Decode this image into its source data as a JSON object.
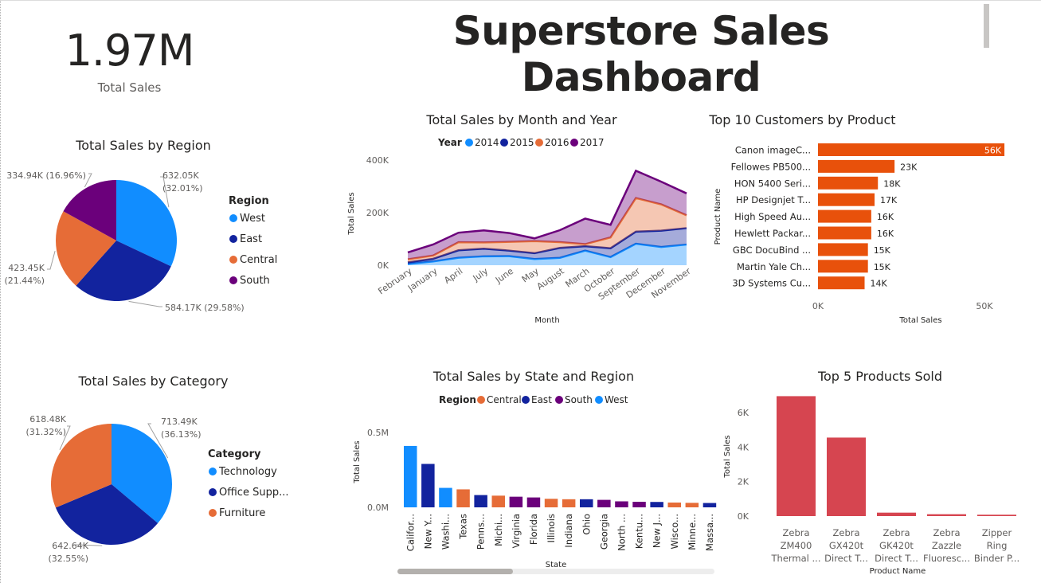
{
  "dashboard": {
    "title": "Superstore Sales Dashboard",
    "kpi": {
      "value": "1.97M",
      "label": "Total Sales"
    }
  },
  "colors": {
    "blue": "#118DFF",
    "dark_blue": "#12239E",
    "orange": "#E66C37",
    "purple": "#6B007B",
    "bar_orange": "#E8510B",
    "bar_red": "#D64550"
  },
  "chart_data": [
    {
      "id": "region_pie",
      "type": "pie",
      "title": "Total Sales by Region",
      "legend_title": "Region",
      "legend_position": "right",
      "slices": [
        {
          "name": "West",
          "value": 632.05,
          "label": "632.05K",
          "pct": "(32.01%)",
          "color": "#118DFF"
        },
        {
          "name": "East",
          "value": 584.17,
          "label": "584.17K (29.58%)",
          "pct": "",
          "color": "#12239E"
        },
        {
          "name": "Central",
          "value": 423.45,
          "label": "423.45K",
          "pct": "(21.44%)",
          "color": "#E66C37"
        },
        {
          "name": "South",
          "value": 334.94,
          "label": "334.94K (16.96%)",
          "pct": "",
          "color": "#6B007B"
        }
      ]
    },
    {
      "id": "category_pie",
      "type": "pie",
      "title": "Total Sales by Category",
      "legend_title": "Category",
      "legend_position": "right",
      "slices": [
        {
          "name": "Technology",
          "value": 713.49,
          "label": "713.49K",
          "pct": "(36.13%)",
          "color": "#118DFF"
        },
        {
          "name": "Office Supp...",
          "value": 642.64,
          "label": "642.64K",
          "pct": "(32.55%)",
          "color": "#12239E"
        },
        {
          "name": "Furniture",
          "value": 618.48,
          "label": "618.48K",
          "pct": "(31.32%)",
          "color": "#E66C37"
        }
      ]
    },
    {
      "id": "month_area",
      "type": "area",
      "title": "Total Sales by Month and Year",
      "legend_title": "Year",
      "legend_position": "top",
      "xlabel": "Month",
      "ylabel": "Total Sales",
      "ylim": [
        0,
        400000
      ],
      "yticks": [
        0,
        200000,
        400000
      ],
      "ytick_labels": [
        "0K",
        "200K",
        "400K"
      ],
      "categories": [
        "February",
        "January",
        "April",
        "July",
        "June",
        "May",
        "August",
        "March",
        "October",
        "September",
        "December",
        "November"
      ],
      "series": [
        {
          "name": "2014",
          "color": "#118DFF",
          "values": [
            4520,
            14240,
            28300,
            33900,
            34600,
            23600,
            28000,
            55700,
            31000,
            81800,
            69500,
            78600
          ]
        },
        {
          "name": "2015",
          "color": "#12239E",
          "values": [
            6000,
            10200,
            28400,
            29100,
            20900,
            22100,
            37900,
            16800,
            33500,
            46000,
            62000,
            62500
          ]
        },
        {
          "name": "2016",
          "color": "#E66C37",
          "values": [
            12000,
            12400,
            30800,
            23700,
            33400,
            46100,
            21800,
            7700,
            41200,
            127800,
            100000,
            48800
          ]
        },
        {
          "name": "2017",
          "color": "#6B007B",
          "values": [
            26000,
            42000,
            36200,
            46000,
            33600,
            10400,
            45600,
            97200,
            48000,
            104000,
            86400,
            83400
          ]
        }
      ]
    },
    {
      "id": "top_customers",
      "type": "bar",
      "orientation": "horizontal",
      "title": "Top 10 Customers by Product",
      "xlabel": "Total Sales",
      "ylabel": "Product Name",
      "xlim": [
        0,
        65000
      ],
      "xticks": [
        0,
        50000
      ],
      "xtick_labels": [
        "0K",
        "50K"
      ],
      "categories": [
        "Canon imageC...",
        "Fellowes PB500...",
        "HON 5400 Seri...",
        "HP Designjet T...",
        "High Speed Au...",
        "Hewlett Packar...",
        "GBC DocuBind ...",
        "Martin Yale Ch...",
        "3D Systems Cu..."
      ],
      "values": [
        56000,
        23000,
        18000,
        17000,
        16000,
        16000,
        15000,
        15000,
        14000
      ],
      "value_labels": [
        "56K",
        "23K",
        "18K",
        "17K",
        "16K",
        "16K",
        "15K",
        "15K",
        "14K"
      ],
      "color": "#E8510B"
    },
    {
      "id": "state_region",
      "type": "bar",
      "title": "Total Sales by State and Region",
      "legend_title": "Region",
      "legend_position": "top",
      "legend": [
        {
          "name": "Central",
          "color": "#E66C37"
        },
        {
          "name": "East",
          "color": "#12239E"
        },
        {
          "name": "South",
          "color": "#6B007B"
        },
        {
          "name": "West",
          "color": "#118DFF"
        }
      ],
      "xlabel": "State",
      "ylabel": "Total Sales",
      "ylim": [
        0,
        550000
      ],
      "yticks": [
        0,
        500000
      ],
      "ytick_labels": [
        "0.0M",
        "0.5M"
      ],
      "categories": [
        "Califor...",
        "New Y...",
        "Washi...",
        "Texas",
        "Penns...",
        "Michi...",
        "Virginia",
        "Florida",
        "Illinois",
        "Indiana",
        "Ohio",
        "Georgia",
        "North ...",
        "Kentu...",
        "New J...",
        "Wisco...",
        "Minne...",
        "Massa..."
      ],
      "values": [
        410000,
        290000,
        130000,
        120000,
        82000,
        78000,
        71000,
        66000,
        57000,
        54000,
        54000,
        50000,
        40000,
        37000,
        36000,
        32000,
        30000,
        29000
      ],
      "regions": [
        "West",
        "East",
        "West",
        "Central",
        "East",
        "Central",
        "South",
        "South",
        "Central",
        "Central",
        "East",
        "South",
        "South",
        "South",
        "East",
        "Central",
        "Central",
        "East"
      ]
    },
    {
      "id": "top_products",
      "type": "bar",
      "title": "Top 5 Products Sold",
      "xlabel": "Product Name",
      "ylabel": "Total Sales",
      "ylim": [
        0,
        7000
      ],
      "yticks": [
        0,
        2000,
        4000,
        6000
      ],
      "ytick_labels": [
        "0K",
        "2K",
        "4K",
        "6K"
      ],
      "categories": [
        [
          "Zebra",
          "ZM400",
          "Thermal ..."
        ],
        [
          "Zebra",
          "GX420t",
          "Direct T..."
        ],
        [
          "Zebra",
          "GK420t",
          "Direct T..."
        ],
        [
          "Zebra",
          "Zazzle",
          "Fluoresc..."
        ],
        [
          "Zipper",
          "Ring",
          "Binder P..."
        ]
      ],
      "values": [
        6950,
        4550,
        200,
        110,
        80
      ],
      "color": "#D64550"
    }
  ]
}
